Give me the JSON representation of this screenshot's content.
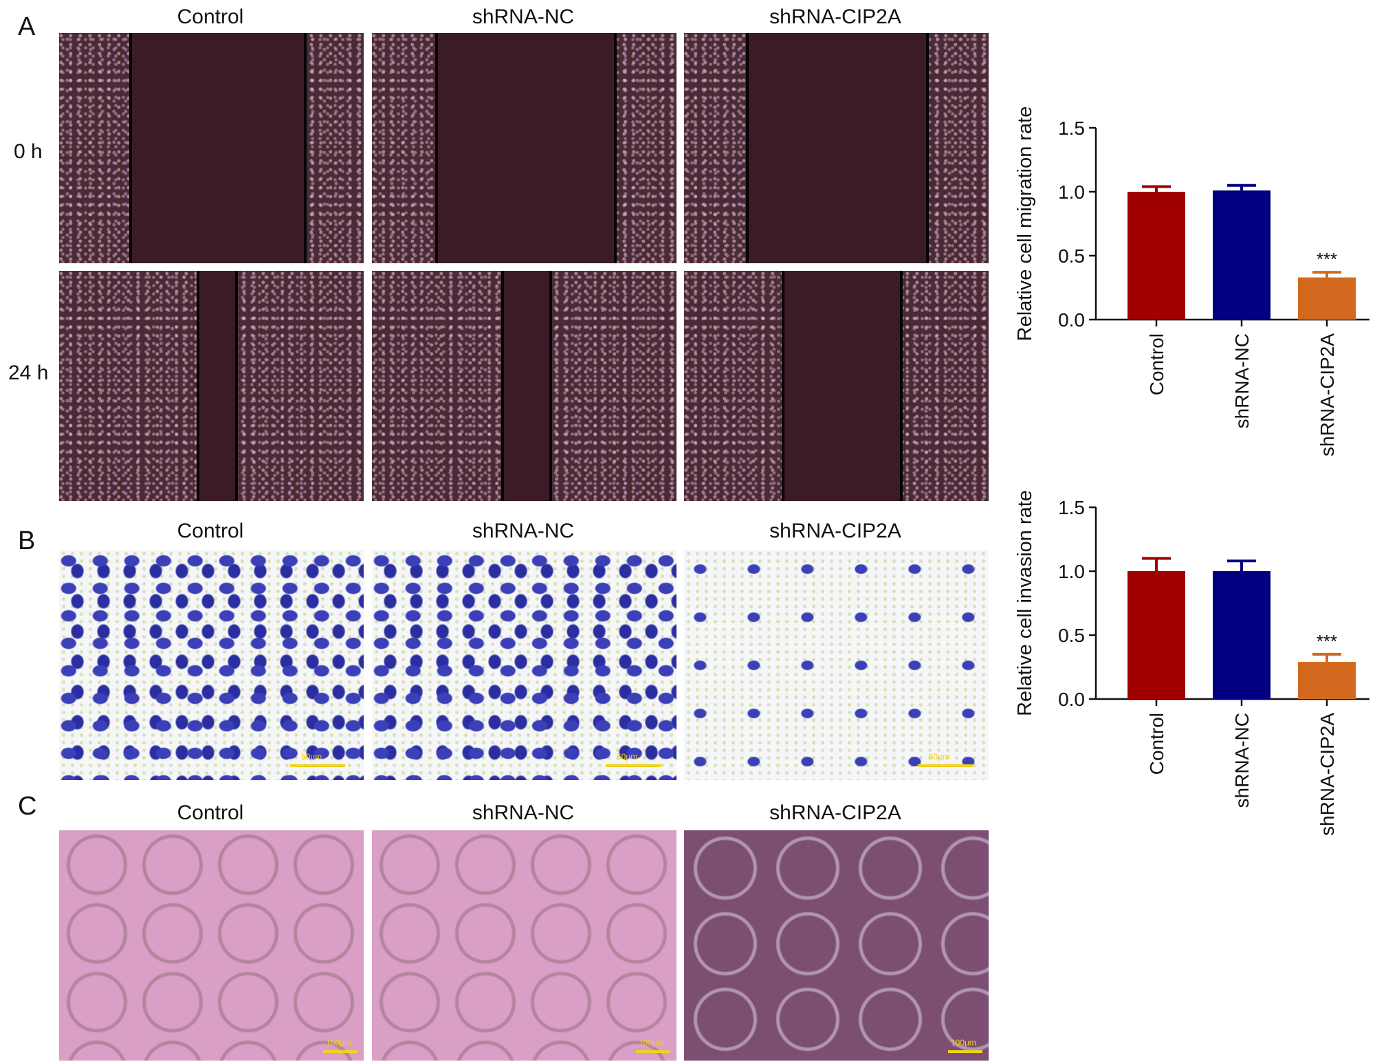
{
  "panels": {
    "A": {
      "letter": "A",
      "columns": [
        "Control",
        "shRNA-NC",
        "shRNA-CIP2A"
      ],
      "rows": [
        "0 h",
        "24 h"
      ]
    },
    "B": {
      "letter": "B",
      "columns": [
        "Control",
        "shRNA-NC",
        "shRNA-CIP2A"
      ],
      "scale_labels": [
        "50μm",
        "50μm",
        "50μm"
      ]
    },
    "C": {
      "letter": "C",
      "columns": [
        "Control",
        "shRNA-NC",
        "shRNA-CIP2A"
      ],
      "scale_labels": [
        "100μm",
        "100μm",
        "100μm"
      ]
    }
  },
  "colors": {
    "Control": "#a00000",
    "shRNA-NC": "#000080",
    "shRNA-CIP2A": "#d2691e",
    "scalebar": "#f1d21c"
  },
  "chart_data": [
    {
      "type": "bar",
      "categories": [
        "Control",
        "shRNA-NC",
        "shRNA-CIP2A"
      ],
      "values": [
        1.0,
        1.01,
        0.33
      ],
      "errors": [
        0.04,
        0.04,
        0.04
      ],
      "annotations": [
        "",
        "",
        "***"
      ],
      "ylabel": "Relative cell migration rate",
      "ylim": [
        0,
        1.5
      ],
      "yticks": [
        "0.0",
        "0.5",
        "1.0",
        "1.5"
      ],
      "grid": false
    },
    {
      "type": "bar",
      "categories": [
        "Control",
        "shRNA-NC",
        "shRNA-CIP2A"
      ],
      "values": [
        1.0,
        1.0,
        0.29
      ],
      "errors": [
        0.1,
        0.08,
        0.06
      ],
      "annotations": [
        "",
        "",
        "***"
      ],
      "ylabel": "Relative cell invasion rate",
      "ylim": [
        0,
        1.5
      ],
      "yticks": [
        "0.0",
        "0.5",
        "1.0",
        "1.5"
      ],
      "grid": false
    }
  ]
}
